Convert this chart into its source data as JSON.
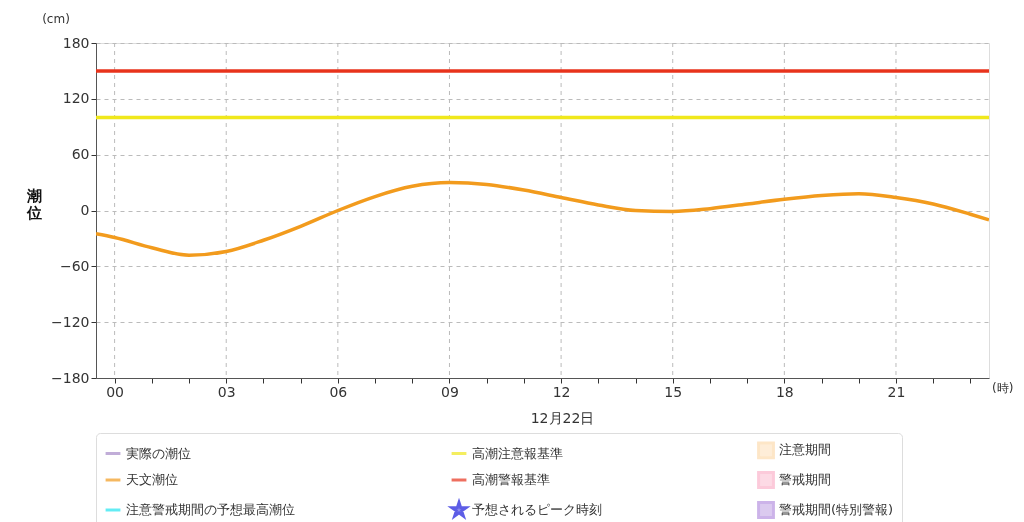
{
  "chart_data": {
    "type": "line",
    "xlabel": "12月22日",
    "ylabel": "潮位",
    "annotations": [
      "(cm)",
      "(時)"
    ],
    "x": [
      -0.5,
      0,
      1,
      2,
      3,
      4,
      5,
      6,
      7,
      8,
      9,
      10,
      11,
      12,
      13,
      14,
      15,
      16,
      17,
      18,
      19,
      20,
      21,
      22,
      23,
      23.5
    ],
    "series": [
      {
        "name": "実際の潮位",
        "color": "#a78bc8",
        "values": [
          null,
          null,
          null,
          null,
          null,
          null,
          null,
          null,
          null,
          null,
          null,
          null,
          null,
          null,
          null,
          null,
          null,
          null,
          null,
          null,
          null,
          null,
          null,
          null,
          null,
          null
        ]
      },
      {
        "name": "天文潮位",
        "color": "#f29b1d",
        "values": [
          -25,
          -29,
          -40,
          -48,
          -44,
          -32,
          -17,
          0,
          15,
          26,
          30,
          28,
          22,
          14,
          6,
          0,
          -1,
          2,
          7,
          12,
          16,
          18,
          14,
          7,
          -4,
          -10
        ]
      },
      {
        "name": "注意警戒期間の予想最高潮位",
        "color": "#22e5f0",
        "values": [
          null,
          null,
          null,
          null,
          null,
          null,
          null,
          null,
          null,
          null,
          null,
          null,
          null,
          null,
          null,
          null,
          null,
          null,
          null,
          null,
          null,
          null,
          null,
          null,
          null,
          null
        ]
      },
      {
        "name": "高潮注意報基準",
        "color": "#f0e81c",
        "values": [
          100,
          100,
          100,
          100,
          100,
          100,
          100,
          100,
          100,
          100,
          100,
          100,
          100,
          100,
          100,
          100,
          100,
          100,
          100,
          100,
          100,
          100,
          100,
          100,
          100,
          100
        ]
      },
      {
        "name": "高潮警報基準",
        "color": "#e8331c",
        "values": [
          150,
          150,
          150,
          150,
          150,
          150,
          150,
          150,
          150,
          150,
          150,
          150,
          150,
          150,
          150,
          150,
          150,
          150,
          150,
          150,
          150,
          150,
          150,
          150,
          150,
          150
        ]
      },
      {
        "name": "予想されるピーク時刻",
        "type": "scatter",
        "marker": "star",
        "color": "#1a1adc",
        "values": [
          null,
          null,
          null,
          null,
          null,
          null,
          null,
          null,
          null,
          null,
          null,
          null,
          null,
          null,
          null,
          null,
          null,
          null,
          null,
          null,
          null,
          null,
          null,
          null,
          null,
          null
        ]
      },
      {
        "name": "注意期間",
        "type": "area",
        "color": "#fddcb0",
        "values": [
          null,
          null,
          null,
          null,
          null,
          null,
          null,
          null,
          null,
          null,
          null,
          null,
          null,
          null,
          null,
          null,
          null,
          null,
          null,
          null,
          null,
          null,
          null,
          null,
          null,
          null
        ]
      },
      {
        "name": "警戒期間",
        "type": "area",
        "color": "#fbb4cb",
        "values": [
          null,
          null,
          null,
          null,
          null,
          null,
          null,
          null,
          null,
          null,
          null,
          null,
          null,
          null,
          null,
          null,
          null,
          null,
          null,
          null,
          null,
          null,
          null,
          null,
          null,
          null
        ]
      },
      {
        "name": "警戒期間(特別警報)",
        "type": "area",
        "color": "#b794e0",
        "values": [
          null,
          null,
          null,
          null,
          null,
          null,
          null,
          null,
          null,
          null,
          null,
          null,
          null,
          null,
          null,
          null,
          null,
          null,
          null,
          null,
          null,
          null,
          null,
          null,
          null,
          null
        ]
      }
    ],
    "xlim": [
      -0.5,
      23.5
    ],
    "ylim": [
      -180,
      180
    ],
    "xticks": [
      {
        "value": 0,
        "label": "00"
      },
      {
        "value": 1,
        "label": null
      },
      {
        "value": 2,
        "label": null
      },
      {
        "value": 3,
        "label": "03"
      },
      {
        "value": 4,
        "label": null
      },
      {
        "value": 5,
        "label": null
      },
      {
        "value": 6,
        "label": "06"
      },
      {
        "value": 7,
        "label": null
      },
      {
        "value": 8,
        "label": null
      },
      {
        "value": 9,
        "label": "09"
      },
      {
        "value": 10,
        "label": null
      },
      {
        "value": 11,
        "label": null
      },
      {
        "value": 12,
        "label": "12"
      },
      {
        "value": 13,
        "label": null
      },
      {
        "value": 14,
        "label": null
      },
      {
        "value": 15,
        "label": "15"
      },
      {
        "value": 16,
        "label": null
      },
      {
        "value": 17,
        "label": null
      },
      {
        "value": 18,
        "label": "18"
      },
      {
        "value": 19,
        "label": null
      },
      {
        "value": 20,
        "label": null
      },
      {
        "value": 21,
        "label": "21"
      },
      {
        "value": 22,
        "label": null
      },
      {
        "value": 23,
        "label": null
      }
    ],
    "yticks": [
      -180,
      -120,
      -60,
      0,
      60,
      120,
      180
    ],
    "grid": true,
    "line_style": "solid",
    "legend": "bottom"
  }
}
